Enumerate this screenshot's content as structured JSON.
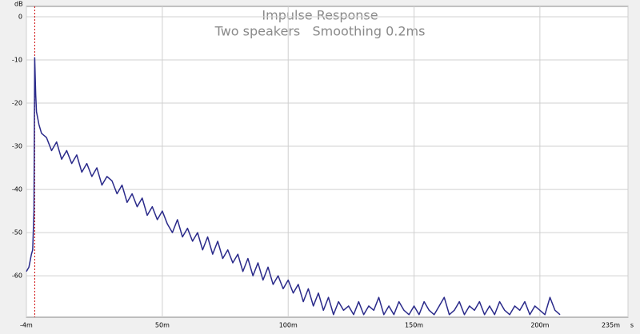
{
  "chart_data": {
    "type": "line",
    "title": "Impulse Response",
    "subtitle": "Two speakers   Smoothing 0.2ms",
    "y_unit": "dB",
    "x_unit": "s",
    "color": "#2a2a8a",
    "marker_color": "#cc0000",
    "marker_x": -0.7,
    "grid": true,
    "xlim": [
      -4,
      235
    ],
    "ylim": [
      -69.6,
      2.4
    ],
    "xticks": [
      {
        "value": -4,
        "label": "-4m"
      },
      {
        "value": 50,
        "label": "50m"
      },
      {
        "value": 100,
        "label": "100m"
      },
      {
        "value": 150,
        "label": "150m"
      },
      {
        "value": 200,
        "label": "200m"
      },
      {
        "value": 235,
        "label": "235m"
      }
    ],
    "yticks": [
      0,
      -10,
      -20,
      -30,
      -40,
      -50,
      -60
    ],
    "x": [
      -4,
      -3,
      -2,
      -1.5,
      -1,
      -0.7,
      -0.3,
      0,
      1,
      2,
      4,
      6,
      8,
      10,
      12,
      14,
      16,
      18,
      20,
      22,
      24,
      26,
      28,
      30,
      32,
      34,
      36,
      38,
      40,
      42,
      44,
      46,
      48,
      50,
      52,
      54,
      56,
      58,
      60,
      62,
      64,
      66,
      68,
      70,
      72,
      74,
      76,
      78,
      80,
      82,
      84,
      86,
      88,
      90,
      92,
      94,
      96,
      98,
      100,
      102,
      104,
      106,
      108,
      110,
      112,
      114,
      116,
      118,
      120,
      122,
      124,
      126,
      128,
      130,
      132,
      134,
      136,
      138,
      140,
      142,
      144,
      146,
      148,
      150,
      152,
      154,
      156,
      158,
      160,
      162,
      164,
      166,
      168,
      170,
      172,
      174,
      176,
      178,
      180,
      182,
      184,
      186,
      188,
      190,
      192,
      194,
      196,
      198,
      200,
      202,
      204,
      206,
      208
    ],
    "values": [
      -59,
      -58,
      -55,
      -54,
      -45,
      -9.5,
      -18,
      -22,
      -25,
      -27,
      -28,
      -31,
      -29,
      -33,
      -31,
      -34,
      -32,
      -36,
      -34,
      -37,
      -35,
      -39,
      -37,
      -38,
      -41,
      -39,
      -43,
      -41,
      -44,
      -42,
      -46,
      -44,
      -47,
      -45,
      -48,
      -50,
      -47,
      -51,
      -49,
      -52,
      -50,
      -54,
      -51,
      -55,
      -52,
      -56,
      -54,
      -57,
      -55,
      -59,
      -56,
      -60,
      -57,
      -61,
      -58,
      -62,
      -60,
      -63,
      -61,
      -64,
      -62,
      -66,
      -63,
      -67,
      -64,
      -68,
      -65,
      -69,
      -66,
      -68,
      -67,
      -69,
      -66,
      -69,
      -67,
      -68,
      -65,
      -69,
      -67,
      -69,
      -66,
      -68,
      -69,
      -67,
      -69,
      -66,
      -68,
      -69,
      -67,
      -65,
      -69,
      -68,
      -66,
      -69,
      -67,
      -68,
      -66,
      -69,
      -67,
      -69,
      -66,
      -68,
      -69,
      -67,
      -68,
      -66,
      -69,
      -67,
      -68,
      -69,
      -65,
      -68,
      -69
    ]
  }
}
